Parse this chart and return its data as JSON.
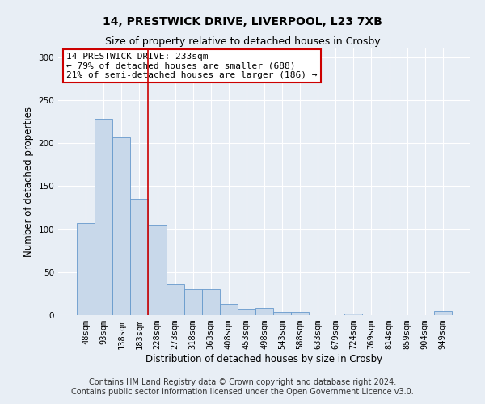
{
  "title_line1": "14, PRESTWICK DRIVE, LIVERPOOL, L23 7XB",
  "title_line2": "Size of property relative to detached houses in Crosby",
  "xlabel": "Distribution of detached houses by size in Crosby",
  "ylabel": "Number of detached properties",
  "bin_labels": [
    "48sqm",
    "93sqm",
    "138sqm",
    "183sqm",
    "228sqm",
    "273sqm",
    "318sqm",
    "363sqm",
    "408sqm",
    "453sqm",
    "498sqm",
    "543sqm",
    "588sqm",
    "633sqm",
    "679sqm",
    "724sqm",
    "769sqm",
    "814sqm",
    "859sqm",
    "904sqm",
    "949sqm"
  ],
  "bar_values": [
    107,
    228,
    207,
    135,
    104,
    36,
    30,
    30,
    13,
    7,
    8,
    4,
    4,
    0,
    0,
    2,
    0,
    0,
    0,
    0,
    5
  ],
  "bar_color": "#c8d8ea",
  "bar_edge_color": "#6699cc",
  "red_line_x": 3.5,
  "red_line_color": "#cc0000",
  "annotation_text": "14 PRESTWICK DRIVE: 233sqm\n← 79% of detached houses are smaller (688)\n21% of semi-detached houses are larger (186) →",
  "annotation_box_facecolor": "#ffffff",
  "annotation_box_edgecolor": "#cc0000",
  "ylim": [
    0,
    310
  ],
  "yticks": [
    0,
    50,
    100,
    150,
    200,
    250,
    300
  ],
  "footer_text": "Contains HM Land Registry data © Crown copyright and database right 2024.\nContains public sector information licensed under the Open Government Licence v3.0.",
  "bg_color": "#e8eef5",
  "plot_bg_color": "#e8eef5",
  "grid_color": "#ffffff",
  "title_fontsize": 10,
  "subtitle_fontsize": 9,
  "axis_label_fontsize": 8.5,
  "tick_fontsize": 7.5,
  "annotation_fontsize": 8,
  "footer_fontsize": 7
}
